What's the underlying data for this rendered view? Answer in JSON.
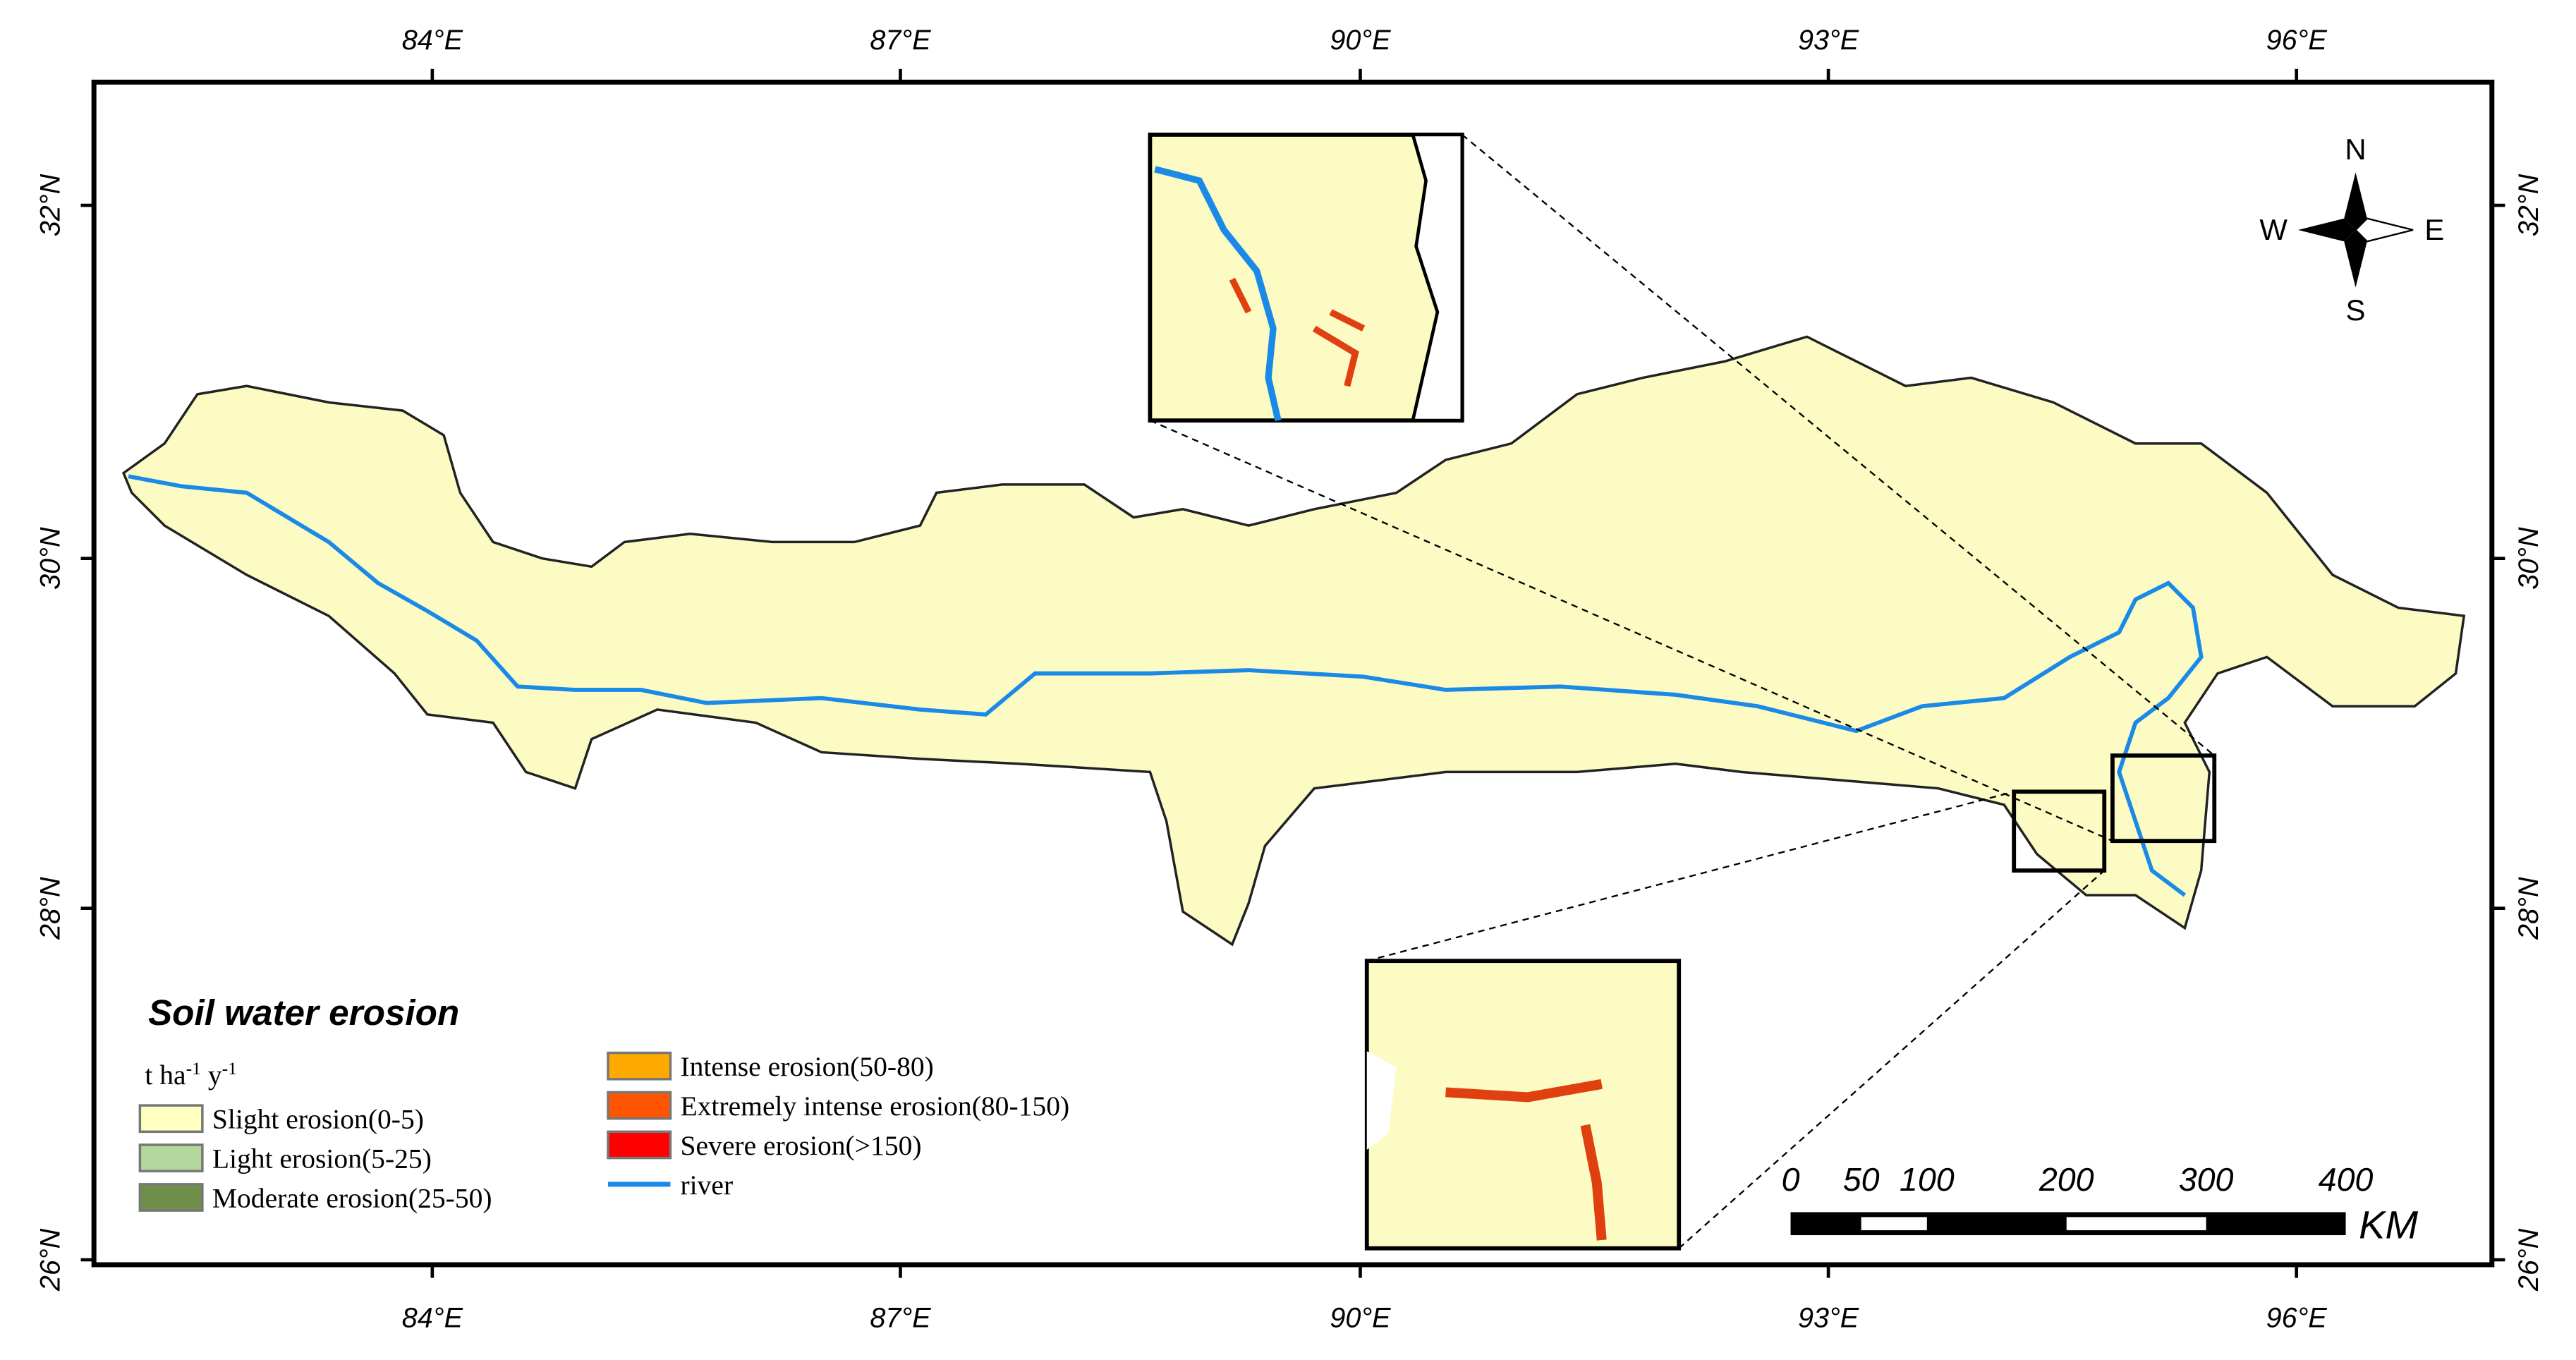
{
  "frame": {
    "lon_labels": [
      "84°E",
      "87°E",
      "90°E",
      "93°E",
      "96°E"
    ],
    "lat_labels": [
      "32°N",
      "30°N",
      "28°N",
      "26°N"
    ]
  },
  "compass": {
    "north": "N",
    "south": "S",
    "west": "W",
    "east": "E"
  },
  "legend": {
    "title": "Soil water erosion",
    "unit_parts": [
      "t ha",
      "-1",
      " y",
      "-1"
    ],
    "items": [
      {
        "label": "Slight erosion(0-5)",
        "color": "#ffffc0"
      },
      {
        "label": "Light erosion(5-25)",
        "color": "#b4d79e"
      },
      {
        "label": "Moderate erosion(25-50)",
        "color": "#6e8f4a"
      },
      {
        "label": "Intense erosion(50-80)",
        "color": "#ffaa00"
      },
      {
        "label": "Extremely intense erosion(80-150)",
        "color": "#ff5500"
      },
      {
        "label": "Severe erosion(>150)",
        "color": "#ff0000"
      },
      {
        "label": "river",
        "color": "#1a8ae6"
      }
    ]
  },
  "scale_bar": {
    "labels": [
      "0",
      "50",
      "100",
      "200",
      "300",
      "400"
    ],
    "unit": "KM"
  }
}
